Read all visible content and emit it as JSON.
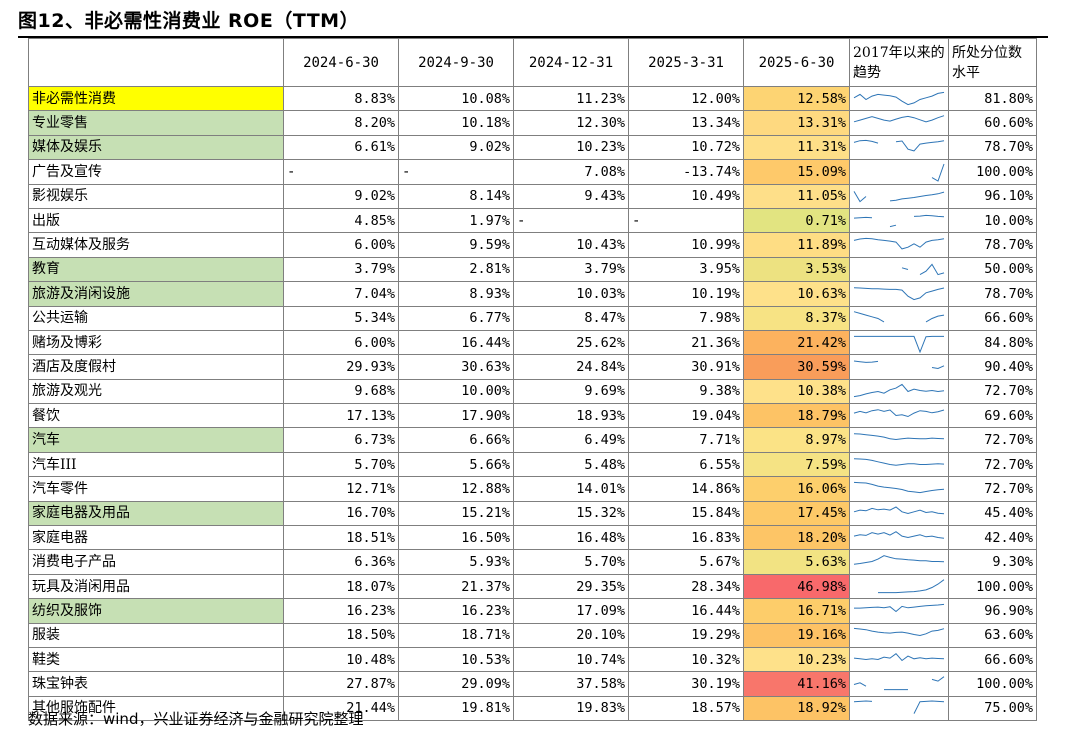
{
  "title": "图12、非必需性消费业 ROE（TTM）",
  "source": "数据来源：wind，兴业证券经济与金融研究院整理",
  "table": {
    "headers": [
      "",
      "2024-6-30",
      "2024-9-30",
      "2024-12-31",
      "2025-3-31",
      "2025-6-30",
      "2017年以来的趋势",
      "所处分位数水平"
    ],
    "colors": {
      "highlight_yellow": "#ffff00",
      "highlight_green": "#c6e0b4"
    },
    "rows": [
      {
        "name": "非必需性消费",
        "vals": [
          "8.83%",
          "10.08%",
          "11.23%",
          "12.00%",
          "12.58%"
        ],
        "pct": "81.80%",
        "hl": "#ffff00",
        "heat": "#fdd473",
        "spark": [
          8,
          9,
          7.5,
          8.5,
          9,
          8.8,
          8.6,
          8.2,
          7,
          6,
          6.5,
          7.5,
          8,
          8.5,
          9.3,
          9.6
        ]
      },
      {
        "name": "专业零售",
        "vals": [
          "8.20%",
          "10.18%",
          "12.30%",
          "13.34%",
          "13.31%"
        ],
        "pct": "60.60%",
        "hl": "#c6e0b4",
        "heat": "#fed980",
        "spark": [
          8,
          8.5,
          9,
          9.5,
          9,
          8.5,
          8.2,
          8.8,
          9.3,
          9.6,
          9.2,
          8.6,
          8,
          8.5,
          9.2,
          9.8
        ]
      },
      {
        "name": "媒体及娱乐",
        "vals": [
          "6.61%",
          "9.02%",
          "10.23%",
          "10.72%",
          "11.31%"
        ],
        "pct": "78.70%",
        "hl": "#c6e0b4",
        "heat": "#fedf88",
        "spark": [
          9,
          9.5,
          9.6,
          9.3,
          8.8,
          null,
          null,
          9.2,
          9.4,
          7,
          6.5,
          8.5,
          8.8,
          9,
          9.2,
          9.5
        ]
      },
      {
        "name": "广告及宣传",
        "vals": [
          "-",
          "-",
          "7.08%",
          "-13.74%",
          "15.09%"
        ],
        "pct": "100.00%",
        "hl": null,
        "heat": "#fec96a",
        "spark": [
          null,
          null,
          null,
          null,
          null,
          null,
          null,
          null,
          null,
          null,
          null,
          null,
          null,
          6,
          5,
          10
        ]
      },
      {
        "name": "影视娱乐",
        "vals": [
          "9.02%",
          "8.14%",
          "9.43%",
          "10.49%",
          "11.05%"
        ],
        "pct": "96.10%",
        "hl": null,
        "heat": "#fedf89",
        "spark": [
          9,
          6,
          7.5,
          null,
          null,
          null,
          6.2,
          6.4,
          6.8,
          7,
          7.2,
          7.5,
          7.8,
          8,
          8.3,
          8.8
        ]
      },
      {
        "name": "出版",
        "vals": [
          "4.85%",
          "1.97%",
          "-",
          "-",
          "0.71%"
        ],
        "pct": "10.00%",
        "hl": null,
        "heat": "#e2e481",
        "spark": [
          8.5,
          8.6,
          8.7,
          8.6,
          null,
          null,
          6,
          6.4,
          null,
          null,
          9,
          9.1,
          9.3,
          9.2,
          9,
          8.9
        ]
      },
      {
        "name": "互动媒体及服务",
        "vals": [
          "6.00%",
          "9.59%",
          "10.43%",
          "10.99%",
          "11.89%"
        ],
        "pct": "78.70%",
        "hl": null,
        "heat": "#fedd84",
        "spark": [
          9,
          9.4,
          9.6,
          9.5,
          9.2,
          9,
          8.8,
          8.5,
          6.5,
          7,
          8,
          7,
          8.5,
          9,
          9.2,
          9.5
        ]
      },
      {
        "name": "教育",
        "vals": [
          "3.79%",
          "2.81%",
          "3.79%",
          "3.95%",
          "3.53%"
        ],
        "pct": "50.00%",
        "hl": "#c6e0b4",
        "heat": "#ede281",
        "spark": [
          7.5,
          null,
          7.5,
          null,
          null,
          null,
          null,
          null,
          8,
          7.5,
          null,
          6,
          7,
          9,
          6,
          6.5
        ]
      },
      {
        "name": "旅游及消闲设施",
        "vals": [
          "7.04%",
          "8.93%",
          "10.03%",
          "10.19%",
          "10.63%"
        ],
        "pct": "78.70%",
        "hl": "#c6e0b4",
        "heat": "#fee18a",
        "spark": [
          9.5,
          9.4,
          9.3,
          9.2,
          9.2,
          9.1,
          9,
          9,
          8.8,
          7,
          6,
          6.5,
          8,
          8.5,
          9,
          9.4
        ]
      },
      {
        "name": "公共运输",
        "vals": [
          "5.34%",
          "6.77%",
          "8.47%",
          "7.98%",
          "8.37%"
        ],
        "pct": "66.60%",
        "hl": null,
        "heat": "#f7e384",
        "spark": [
          9.5,
          9,
          8.5,
          8,
          7.5,
          6.5,
          null,
          null,
          null,
          null,
          null,
          null,
          6.5,
          7.5,
          8.2,
          8.5
        ]
      },
      {
        "name": "赌场及博彩",
        "vals": [
          "6.00%",
          "16.44%",
          "25.62%",
          "21.36%",
          "21.42%"
        ],
        "pct": "84.80%",
        "hl": null,
        "heat": "#fcb25e",
        "spark": [
          9.6,
          9.6,
          9.6,
          9.6,
          9.6,
          9.6,
          9.6,
          9.6,
          9.6,
          9.6,
          9.6,
          5,
          9.5,
          9.6,
          9.6,
          9.6
        ]
      },
      {
        "name": "酒店及度假村",
        "vals": [
          "29.93%",
          "30.63%",
          "24.84%",
          "30.91%",
          "30.59%"
        ],
        "pct": "90.40%",
        "hl": null,
        "heat": "#f99d5a",
        "spark": [
          9.4,
          9.2,
          9,
          9.1,
          9.3,
          null,
          8.8,
          null,
          null,
          null,
          null,
          null,
          null,
          7.5,
          7.2,
          8
        ]
      },
      {
        "name": "旅游及观光",
        "vals": [
          "9.68%",
          "10.00%",
          "9.69%",
          "9.38%",
          "10.38%"
        ],
        "pct": "72.70%",
        "hl": null,
        "heat": "#fee18a",
        "spark": [
          6,
          6.3,
          6.8,
          7.2,
          7.5,
          7,
          8,
          8.5,
          9.6,
          7.5,
          8.2,
          7.8,
          7.6,
          7.8,
          7.5,
          7.7
        ]
      },
      {
        "name": "餐饮",
        "vals": [
          "17.13%",
          "17.90%",
          "18.93%",
          "19.04%",
          "18.79%"
        ],
        "pct": "69.60%",
        "hl": null,
        "heat": "#fdc365",
        "spark": [
          8.5,
          9,
          8.6,
          9.2,
          9.5,
          9,
          9.4,
          7.8,
          8,
          7.5,
          8.5,
          9.2,
          9,
          8.6,
          8.9,
          9.4
        ]
      },
      {
        "name": "汽车",
        "vals": [
          "6.73%",
          "6.66%",
          "6.49%",
          "7.71%",
          "8.97%"
        ],
        "pct": "72.70%",
        "hl": "#c6e0b4",
        "heat": "#fbe386",
        "spark": [
          9.5,
          9.4,
          9.2,
          9,
          8.8,
          8.5,
          8,
          7.8,
          8,
          8.2,
          8.1,
          8,
          8,
          8.2,
          8.1,
          8
        ]
      },
      {
        "name": "汽车III",
        "vals": [
          "5.70%",
          "5.66%",
          "5.48%",
          "6.55%",
          "7.59%"
        ],
        "pct": "72.70%",
        "hl": null,
        "heat": "#f5e384",
        "spark": [
          9.5,
          9.4,
          9.3,
          9,
          8.6,
          8.2,
          7.8,
          7.6,
          7.8,
          8,
          8,
          7.8,
          7.8,
          7.9,
          8,
          7.9
        ]
      },
      {
        "name": "汽车零件",
        "vals": [
          "12.71%",
          "12.88%",
          "14.01%",
          "14.86%",
          "16.06%"
        ],
        "pct": "72.70%",
        "hl": null,
        "heat": "#fdcf6c",
        "spark": [
          9.6,
          9.5,
          9.4,
          9,
          8.5,
          8.2,
          8,
          7.8,
          7.5,
          7,
          6.8,
          6.6,
          6.9,
          7.2,
          7.4,
          7.6
        ]
      },
      {
        "name": "家庭电器及用品",
        "vals": [
          "16.70%",
          "15.21%",
          "15.32%",
          "15.84%",
          "17.45%"
        ],
        "pct": "45.40%",
        "hl": "#c6e0b4",
        "heat": "#fdc968",
        "spark": [
          8,
          8.5,
          8.3,
          9,
          8.6,
          8.8,
          8.5,
          9.4,
          8,
          7.5,
          8,
          8.5,
          7.8,
          8,
          7.6,
          7.4
        ]
      },
      {
        "name": "家庭电器",
        "vals": [
          "18.51%",
          "16.50%",
          "16.48%",
          "16.83%",
          "18.20%"
        ],
        "pct": "42.40%",
        "hl": null,
        "heat": "#fdc566",
        "spark": [
          8.2,
          8.6,
          8.4,
          9.2,
          8.8,
          9.2,
          8.5,
          9.5,
          8.2,
          7.8,
          8.2,
          8.6,
          8,
          8.2,
          7.8,
          7.6
        ]
      },
      {
        "name": "消费电子产品",
        "vals": [
          "6.36%",
          "5.93%",
          "5.70%",
          "5.67%",
          "5.63%"
        ],
        "pct": "9.30%",
        "hl": null,
        "heat": "#f2e383",
        "spark": [
          7,
          7.2,
          7.5,
          7.8,
          8.5,
          9.5,
          9,
          8.6,
          8.5,
          8.3,
          8.2,
          8,
          8,
          7.8,
          7.8,
          7.7
        ]
      },
      {
        "name": "玩具及消闲用品",
        "vals": [
          "18.07%",
          "21.37%",
          "29.35%",
          "28.34%",
          "46.98%"
        ],
        "pct": "100.00%",
        "hl": null,
        "heat": "#f8696b",
        "spark": [
          null,
          null,
          null,
          null,
          6,
          6,
          6,
          6,
          6.1,
          6.2,
          6.3,
          6.5,
          6.8,
          7.5,
          8.5,
          9.8
        ]
      },
      {
        "name": "纺织及服饰",
        "vals": [
          "16.23%",
          "16.23%",
          "17.09%",
          "16.44%",
          "16.71%"
        ],
        "pct": "96.90%",
        "hl": "#c6e0b4",
        "heat": "#fdcd6a",
        "spark": [
          8.5,
          8.5,
          8.6,
          8.7,
          8.8,
          8.6,
          8.9,
          7.5,
          9,
          8.6,
          8.8,
          9,
          9.2,
          9.3,
          9.4,
          9.6
        ]
      },
      {
        "name": "服装",
        "vals": [
          "18.50%",
          "18.71%",
          "20.10%",
          "19.29%",
          "19.16%"
        ],
        "pct": "63.60%",
        "hl": null,
        "heat": "#fdc265",
        "spark": [
          9.6,
          9.4,
          9.2,
          8.8,
          8.5,
          8.3,
          8.2,
          8.4,
          8.5,
          8.2,
          7.8,
          7.5,
          8,
          8.8,
          9,
          9.5
        ]
      },
      {
        "name": "鞋类",
        "vals": [
          "10.48%",
          "10.53%",
          "10.74%",
          "10.32%",
          "10.23%"
        ],
        "pct": "66.60%",
        "hl": null,
        "heat": "#fee18a",
        "spark": [
          8.2,
          8,
          7.8,
          8,
          7.8,
          8.5,
          8.2,
          9.5,
          7.5,
          8.8,
          8,
          8.3,
          8,
          8.2,
          8.1,
          8
        ]
      },
      {
        "name": "珠宝钟表",
        "vals": [
          "27.87%",
          "29.09%",
          "37.58%",
          "30.19%",
          "41.16%"
        ],
        "pct": "100.00%",
        "hl": null,
        "heat": "#f8766b",
        "spark": [
          7.5,
          8,
          7,
          null,
          null,
          6,
          6,
          6,
          6,
          6,
          null,
          null,
          null,
          9,
          8.5,
          9.8
        ]
      },
      {
        "name": "其他服饰配件",
        "vals": [
          "21.44%",
          "19.81%",
          "19.83%",
          "18.57%",
          "18.92%"
        ],
        "pct": "75.00%",
        "hl": null,
        "heat": "#fdc365",
        "spark": [
          9.5,
          9.6,
          9.7,
          9.6,
          null,
          null,
          null,
          null,
          null,
          null,
          6,
          9.5,
          9.6,
          9.7,
          9.6,
          9.5
        ]
      }
    ]
  }
}
